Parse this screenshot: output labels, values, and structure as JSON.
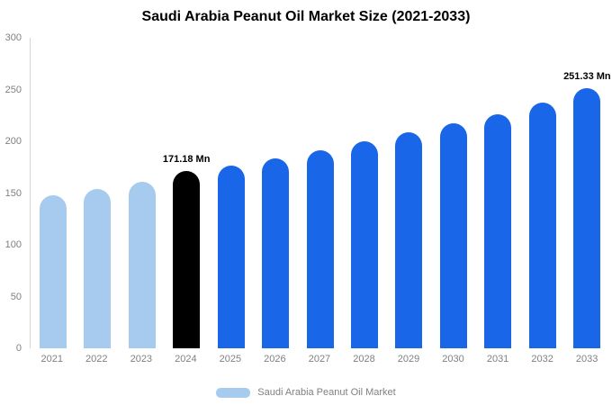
{
  "chart_data": {
    "type": "bar",
    "title": "Saudi Arabia Peanut Oil Market Size (2021-2033)",
    "categories": [
      "2021",
      "2022",
      "2023",
      "2024",
      "2025",
      "2026",
      "2027",
      "2028",
      "2029",
      "2030",
      "2031",
      "2032",
      "2033"
    ],
    "values": [
      147.8,
      153.5,
      161.0,
      171.18,
      176.5,
      183.5,
      191.5,
      200.0,
      208.5,
      217.5,
      226.5,
      237.0,
      251.33
    ],
    "data_labels": [
      "",
      "",
      "",
      "171.18 Mn",
      "",
      "",
      "",
      "",
      "",
      "",
      "",
      "",
      "251.33 Mn"
    ],
    "unit": "Mn",
    "xlabel": "",
    "ylabel": "",
    "ylim": [
      0,
      300
    ],
    "yticks": [
      0,
      50,
      100,
      150,
      200,
      250,
      300
    ],
    "grid": false,
    "legend_position": "bottom",
    "legend_label": "Saudi Arabia Peanut Oil Market",
    "legend_swatch_color": "#a7cbef",
    "palette": {
      "historical": "#a7cbef",
      "highlight": "#000000",
      "forecast": "#1a66e8"
    },
    "bar_color_keys": [
      "historical",
      "historical",
      "historical",
      "highlight",
      "forecast",
      "forecast",
      "forecast",
      "forecast",
      "forecast",
      "forecast",
      "forecast",
      "forecast",
      "forecast"
    ],
    "axis_label_color": "#808080",
    "title_color": "#000000",
    "background_color": "#ffffff"
  }
}
